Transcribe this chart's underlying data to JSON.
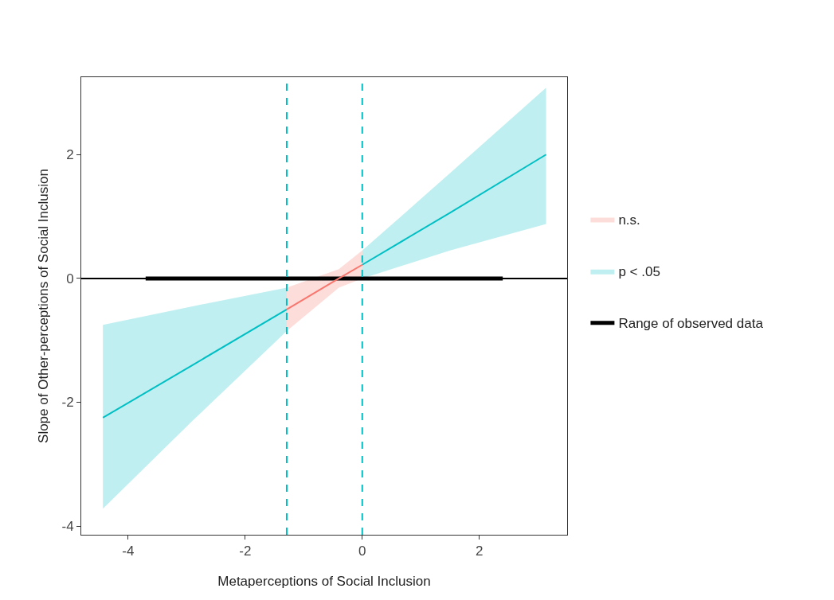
{
  "chart_data": {
    "type": "line",
    "xlabel": "Metaperceptions of Social Inclusion",
    "ylabel": "Slope of Other-perceptions of Social Inclusion",
    "xlim": [
      -4.8,
      3.5
    ],
    "xticks": [
      -4,
      -2,
      0,
      2
    ],
    "ylim": [
      -4.14,
      3.25
    ],
    "yticks": [
      -4,
      -2,
      0,
      2
    ],
    "grid": false,
    "legend": "right",
    "marker": "none",
    "series": [
      {
        "name": "Range of observed data",
        "color": "#000000",
        "x": [
          -3.7,
          2.4
        ],
        "values": [
          0,
          0
        ]
      },
      {
        "name": "n.s.",
        "color": "#f8766d",
        "x": [
          -1.29,
          -0.4,
          0
        ],
        "values": [
          -0.5,
          0,
          0.22
        ],
        "lower": [
          -0.85,
          -0.15,
          0.0
        ],
        "upper": [
          -0.15,
          0.15,
          0.45
        ]
      },
      {
        "name": "p < .05",
        "color": "#00bfc4",
        "x": [
          -4.43,
          -2.9,
          -1.29,
          -0.6,
          0,
          1.5,
          3.14
        ],
        "values": [
          -2.25,
          -1.4,
          -0.5,
          null,
          0.22,
          1.06,
          2.0
        ],
        "lower": [
          -3.72,
          -2.3,
          -0.85,
          null,
          0.0,
          0.45,
          0.88
        ],
        "upper": [
          -0.75,
          -0.45,
          -0.15,
          null,
          0.45,
          1.7,
          3.08
        ]
      }
    ],
    "ref_lines": [
      {
        "axis": "y",
        "value": 0,
        "color": "#000000",
        "line_style": "solid"
      },
      {
        "axis": "x",
        "value": -1.29,
        "color": "#00bfc4",
        "line_style": "dashed"
      },
      {
        "axis": "x",
        "value": 0,
        "color": "#00bfc4",
        "line_style": "dashed"
      }
    ]
  }
}
